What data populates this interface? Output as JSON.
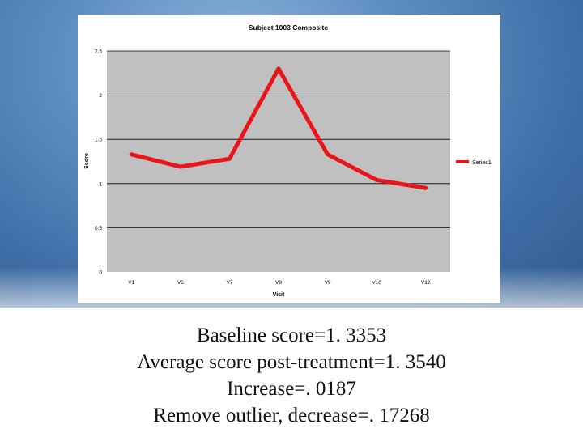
{
  "colors": {
    "series": "#e8161b",
    "plot_bg": "#c0c0c0",
    "gridline": "#000000"
  },
  "chart_data": {
    "type": "line",
    "title": "Subject 1003 Composite",
    "xlabel": "Visit",
    "ylabel": "Score",
    "ylim": [
      0,
      2.5
    ],
    "yticks": [
      "0",
      "0.5",
      "1",
      "1.5",
      "2",
      "2.5"
    ],
    "grid": true,
    "legend_position": "right",
    "categories": [
      "V1",
      "V6",
      "V7",
      "V8",
      "V9",
      "V10",
      "V12"
    ],
    "series": [
      {
        "name": "Series1",
        "values": [
          1.33,
          1.19,
          1.28,
          2.3,
          1.33,
          1.04,
          0.95
        ]
      }
    ]
  },
  "caption": {
    "lines": [
      "Baseline score=1. 3353",
      "Average score post-treatment=1. 3540",
      "Increase=. 0187",
      "Remove outlier, decrease=. 17268"
    ]
  }
}
